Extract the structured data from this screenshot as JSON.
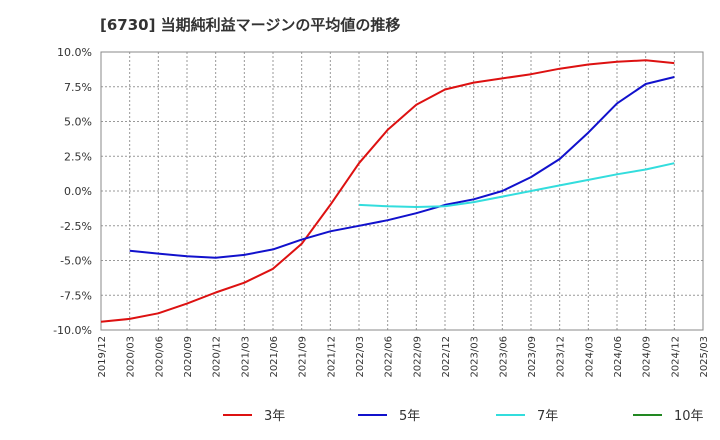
{
  "chart_data": {
    "type": "line",
    "title": "[6730]  当期純利益マージンの平均値の推移",
    "y_ticks": [
      "10.0%",
      "7.5%",
      "5.0%",
      "2.5%",
      "0.0%",
      "-2.5%",
      "-5.0%",
      "-7.5%",
      "-10.0%"
    ],
    "x_ticks": [
      "2019/12",
      "2020/03",
      "2020/06",
      "2020/09",
      "2020/12",
      "2021/03",
      "2021/06",
      "2021/09",
      "2021/12",
      "2022/03",
      "2022/06",
      "2022/09",
      "2022/12",
      "2023/03",
      "2023/06",
      "2023/09",
      "2023/12",
      "2024/03",
      "2024/06",
      "2024/09",
      "2024/12",
      "2025/03"
    ],
    "ylim": [
      -10,
      10
    ],
    "grid": true,
    "legend_position": "bottom",
    "series": [
      {
        "name": "3年",
        "color": "#dd1111",
        "points": [
          [
            "2019/12",
            -9.4
          ],
          [
            "2020/03",
            -9.2
          ],
          [
            "2020/06",
            -8.8
          ],
          [
            "2020/09",
            -8.1
          ],
          [
            "2020/12",
            -7.3
          ],
          [
            "2021/03",
            -6.6
          ],
          [
            "2021/06",
            -5.6
          ],
          [
            "2021/09",
            -3.8
          ],
          [
            "2021/12",
            -1.0
          ],
          [
            "2022/03",
            2.0
          ],
          [
            "2022/06",
            4.4
          ],
          [
            "2022/09",
            6.2
          ],
          [
            "2022/12",
            7.3
          ],
          [
            "2023/03",
            7.8
          ],
          [
            "2023/06",
            8.1
          ],
          [
            "2023/09",
            8.4
          ],
          [
            "2023/12",
            8.8
          ],
          [
            "2024/03",
            9.1
          ],
          [
            "2024/06",
            9.3
          ],
          [
            "2024/09",
            9.4
          ],
          [
            "2024/12",
            9.2
          ]
        ]
      },
      {
        "name": "5年",
        "color": "#1111cc",
        "points": [
          [
            "2020/03",
            -4.3
          ],
          [
            "2020/06",
            -4.5
          ],
          [
            "2020/09",
            -4.7
          ],
          [
            "2020/12",
            -4.8
          ],
          [
            "2021/03",
            -4.6
          ],
          [
            "2021/06",
            -4.2
          ],
          [
            "2021/09",
            -3.5
          ],
          [
            "2021/12",
            -2.9
          ],
          [
            "2022/03",
            -2.5
          ],
          [
            "2022/06",
            -2.1
          ],
          [
            "2022/09",
            -1.6
          ],
          [
            "2022/12",
            -1.0
          ],
          [
            "2023/03",
            -0.6
          ],
          [
            "2023/06",
            0.0
          ],
          [
            "2023/09",
            1.0
          ],
          [
            "2023/12",
            2.3
          ],
          [
            "2024/03",
            4.2
          ],
          [
            "2024/06",
            6.3
          ],
          [
            "2024/09",
            7.7
          ],
          [
            "2024/12",
            8.2
          ]
        ]
      },
      {
        "name": "7年",
        "color": "#33dddd",
        "points": [
          [
            "2022/03",
            -1.0
          ],
          [
            "2022/06",
            -1.1
          ],
          [
            "2022/09",
            -1.15
          ],
          [
            "2022/12",
            -1.1
          ],
          [
            "2023/03",
            -0.8
          ],
          [
            "2023/06",
            -0.4
          ],
          [
            "2023/09",
            0.0
          ],
          [
            "2023/12",
            0.4
          ],
          [
            "2024/03",
            0.8
          ],
          [
            "2024/06",
            1.2
          ],
          [
            "2024/09",
            1.55
          ],
          [
            "2024/12",
            2.0
          ]
        ]
      },
      {
        "name": "10年",
        "color": "#228822",
        "points": []
      }
    ]
  }
}
